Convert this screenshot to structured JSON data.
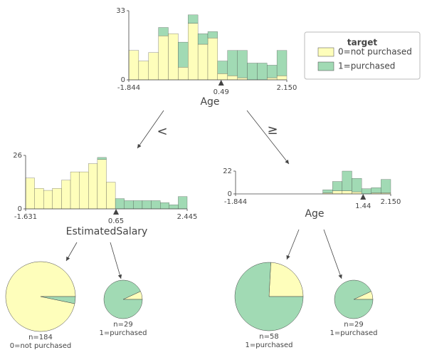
{
  "chart_data": [
    {
      "type": "histogram",
      "xlabel": "Age",
      "bins": [
        -1.844,
        -1.594,
        -1.345,
        -1.095,
        -0.846,
        -0.596,
        -0.346,
        -0.097,
        0.153,
        0.402,
        0.652,
        0.902,
        1.151,
        1.401,
        1.65,
        1.9,
        2.15
      ],
      "xlim": [
        -1.844,
        2.15
      ],
      "xticks": [
        -1.844,
        {
          "value": 2.15,
          "label": "2.150"
        }
      ],
      "ylim": [
        0,
        33
      ],
      "yticks": [
        0,
        33
      ],
      "split": 0.49,
      "legend_title": "target",
      "series": [
        {
          "name": "0=not purchased",
          "color": "#fefebb",
          "values": [
            14,
            9,
            13,
            21,
            22,
            6,
            27,
            17,
            20,
            3,
            2,
            1,
            0,
            0,
            1,
            2
          ]
        },
        {
          "name": "1=purchased",
          "color": "#a1dab4",
          "values": [
            0,
            0,
            0,
            4,
            0,
            12,
            4,
            5,
            3,
            6,
            12,
            13,
            8,
            8,
            6,
            12
          ]
        }
      ]
    },
    {
      "type": "histogram",
      "xlabel": "EstimatedSalary",
      "bins": [
        -1.631,
        -1.405,
        -1.178,
        -0.952,
        -0.725,
        -0.499,
        -0.272,
        -0.046,
        0.181,
        0.407,
        0.633,
        0.86,
        1.086,
        1.313,
        1.539,
        1.766,
        1.992,
        2.219,
        2.445
      ],
      "xlim": [
        -1.631,
        2.445
      ],
      "xticks": [
        -1.631,
        2.445
      ],
      "ylim": [
        0,
        26
      ],
      "yticks": [
        0,
        26
      ],
      "split": 0.65,
      "series": [
        {
          "color": "#fefebb",
          "values": [
            15,
            10,
            9,
            10,
            14,
            18,
            18,
            22,
            24,
            13,
            0,
            0,
            0,
            0,
            0,
            0,
            0,
            0
          ]
        },
        {
          "color": "#a1dab4",
          "values": [
            0,
            0,
            0,
            0,
            0,
            0,
            0,
            0,
            1,
            0,
            5,
            4,
            4,
            4,
            4,
            3,
            2,
            6
          ]
        }
      ]
    },
    {
      "type": "histogram",
      "xlabel": "Age",
      "bins": [
        -1.844,
        -1.594,
        -1.345,
        -1.095,
        -0.846,
        -0.596,
        -0.346,
        -0.097,
        0.153,
        0.402,
        0.652,
        0.902,
        1.151,
        1.401,
        1.65,
        1.9,
        2.15
      ],
      "xlim": [
        -1.844,
        2.15
      ],
      "xticks": [
        -1.844,
        {
          "value": 2.15,
          "label": "2.150"
        }
      ],
      "ylim": [
        0,
        22
      ],
      "yticks": [
        0,
        22
      ],
      "split": 1.44,
      "series": [
        {
          "color": "#fefebb",
          "values": [
            0,
            0,
            0,
            0,
            0,
            0,
            0,
            0,
            0,
            1,
            3,
            3,
            2,
            0,
            1,
            1
          ]
        },
        {
          "color": "#a1dab4",
          "values": [
            0,
            0,
            0,
            0,
            0,
            0,
            0,
            0,
            0,
            3,
            9,
            19,
            13,
            5,
            5,
            13
          ]
        }
      ]
    },
    {
      "type": "pie",
      "values": [
        178,
        6
      ],
      "colors": [
        "#fefebb",
        "#a1dab4"
      ],
      "n_label": "n=184",
      "label": "0=not purchased"
    },
    {
      "type": "pie",
      "values": [
        2,
        27
      ],
      "colors": [
        "#fefebb",
        "#a1dab4"
      ],
      "n_label": "n=29",
      "label": "1=purchased"
    },
    {
      "type": "pie",
      "values": [
        14,
        44
      ],
      "colors": [
        "#fefebb",
        "#a1dab4"
      ],
      "n_label": "n=58",
      "label": "1=purchased"
    },
    {
      "type": "pie",
      "values": [
        2,
        27
      ],
      "colors": [
        "#fefebb",
        "#a1dab4"
      ],
      "n_label": "n=29",
      "label": "1=purchased"
    }
  ],
  "tree": {
    "left_edge": "<",
    "right_edge": "≥"
  }
}
